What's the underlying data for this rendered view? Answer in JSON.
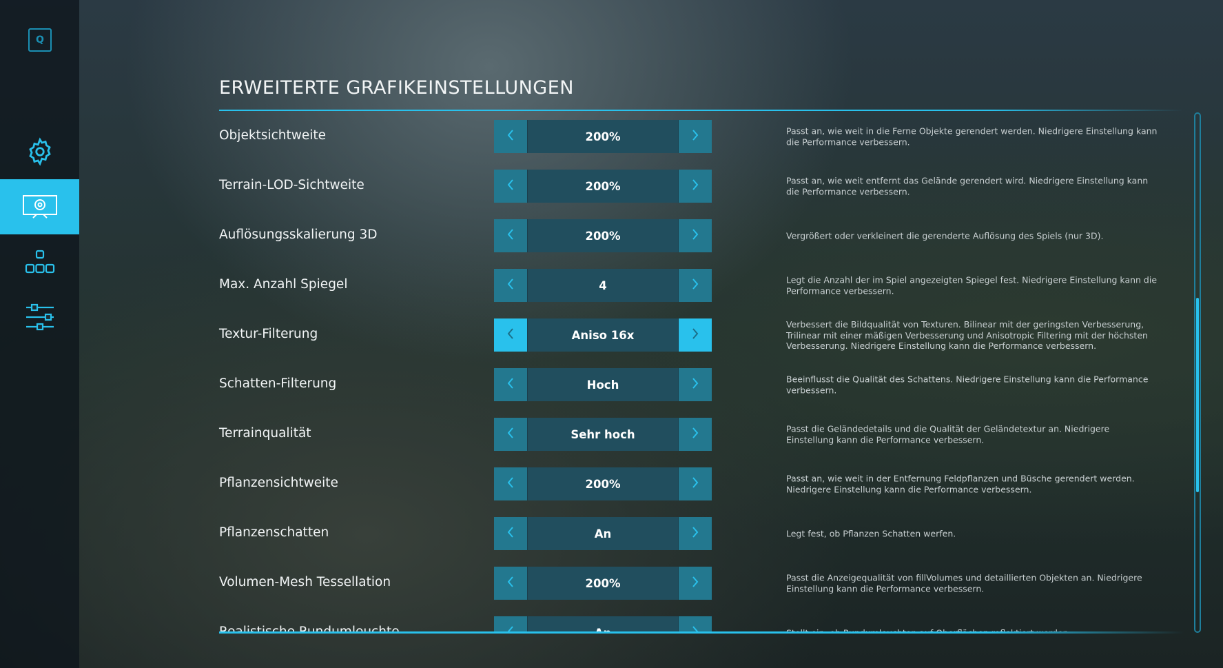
{
  "sidebar": {
    "logo_key": "Q",
    "items": [
      {
        "icon": "gear-icon",
        "active": false
      },
      {
        "icon": "monitor-gear-icon",
        "active": true
      },
      {
        "icon": "blocks-icon",
        "active": false
      },
      {
        "icon": "sliders-icon",
        "active": false
      }
    ]
  },
  "page": {
    "title": "ERWEITERTE GRAFIKEINSTELLUNGEN"
  },
  "accent": "#29c1ec",
  "settings": [
    {
      "label": "Objektsichtweite",
      "value": "200%",
      "desc": "Passt an, wie weit in die Ferne Objekte gerendert werden. Niedrigere Einstellung kann die Performance verbessern."
    },
    {
      "label": "Terrain-LOD-Sichtweite",
      "value": "200%",
      "desc": "Passt an, wie weit entfernt das Gelände gerendert wird. Niedrigere Einstellung kann die Performance verbessern."
    },
    {
      "label": "Auflösungsskalierung 3D",
      "value": "200%",
      "desc": "Vergrößert oder verkleinert die gerenderte Auflösung des Spiels (nur 3D)."
    },
    {
      "label": "Max. Anzahl Spiegel",
      "value": "4",
      "desc": "Legt die Anzahl der im Spiel angezeigten Spiegel fest. Niedrigere Einstellung kann die Performance verbessern."
    },
    {
      "label": "Textur-Filterung",
      "value": "Aniso 16x",
      "selected": true,
      "desc": "Verbessert die Bildqualität von Texturen. Bilinear mit der geringsten Verbesserung, Trilinear mit einer mäßigen Verbesserung und Anisotropic Filtering mit der höchsten Verbesserung. Niedrigere Einstellung kann die Performance verbessern."
    },
    {
      "label": "Schatten-Filterung",
      "value": "Hoch",
      "desc": "Beeinflusst die Qualität des Schattens. Niedrigere Einstellung kann die Performance verbessern."
    },
    {
      "label": "Terrainqualität",
      "value": "Sehr hoch",
      "desc": "Passt die Geländedetails und die Qualität der Geländetextur an. Niedrigere Einstellung kann die Performance verbessern."
    },
    {
      "label": "Pflanzensichtweite",
      "value": "200%",
      "desc": "Passt an, wie weit in der Entfernung Feldpflanzen und Büsche gerendert werden. Niedrigere Einstellung kann die Performance verbessern."
    },
    {
      "label": "Pflanzenschatten",
      "value": "An",
      "desc": "Legt fest, ob Pflanzen Schatten werfen."
    },
    {
      "label": "Volumen-Mesh Tessellation",
      "value": "200%",
      "desc": "Passt die Anzeigequalität von fillVolumes und detaillierten Objekten an. Niedrigere Einstellung kann die Performance verbessern."
    },
    {
      "label": "Realistische Rundumleuchte",
      "value": "An",
      "desc": "Stellt ein, ob Rundumleuchten auf Oberflächen reflektiert werden."
    }
  ]
}
